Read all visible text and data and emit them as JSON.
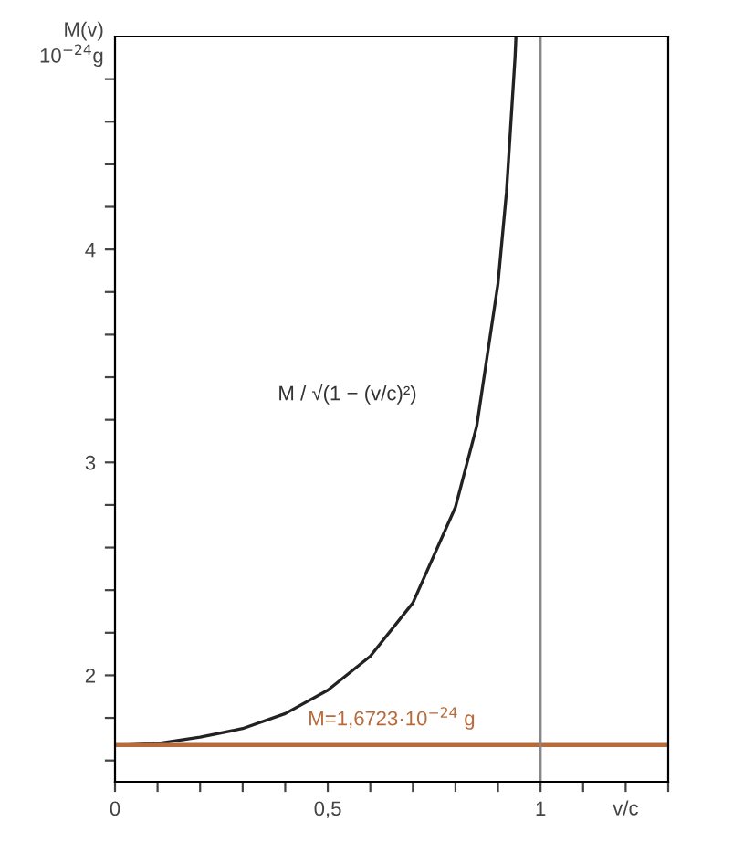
{
  "chart_data": {
    "type": "line",
    "xlabel": "v/c",
    "ylabel": "M(v)\n10$^{−24}$g",
    "x": [
      0,
      0.1,
      0.2,
      0.3,
      0.4,
      0.5,
      0.6,
      0.7,
      0.8,
      0.85,
      0.9,
      0.92,
      0.94,
      0.942
    ],
    "series": [
      {
        "color": "#222222",
        "values": [
          1.67,
          1.68,
          1.71,
          1.75,
          1.82,
          1.93,
          2.09,
          2.34,
          2.79,
          3.17,
          3.84,
          4.27,
          4.9,
          4.99
        ]
      }
    ],
    "xlim": [
      0,
      1.3
    ],
    "ylim": [
      1.5,
      5
    ],
    "xticks": [
      {
        "value": 0,
        "label": "0"
      },
      {
        "value": 0.1,
        "label": null
      },
      {
        "value": 0.2,
        "label": null
      },
      {
        "value": 0.3,
        "label": null
      },
      {
        "value": 0.4,
        "label": null
      },
      {
        "value": 0.5,
        "label": "0,5"
      },
      {
        "value": 0.6,
        "label": null
      },
      {
        "value": 0.7,
        "label": null
      },
      {
        "value": 0.8,
        "label": null
      },
      {
        "value": 0.9,
        "label": null
      },
      {
        "value": 1,
        "label": "1"
      },
      {
        "value": 1.1,
        "label": null
      },
      {
        "value": 1.2,
        "label": null
      },
      {
        "value": 1.3,
        "label": null
      }
    ],
    "yticks": [
      {
        "value": 1.6,
        "label": null
      },
      {
        "value": 1.8,
        "label": null
      },
      2,
      {
        "value": 2.2,
        "label": null
      },
      {
        "value": 2.4,
        "label": null
      },
      {
        "value": 2.6,
        "label": null
      },
      {
        "value": 2.8,
        "label": null
      },
      3,
      {
        "value": 3.2,
        "label": null
      },
      {
        "value": 3.4,
        "label": null
      },
      {
        "value": 3.6,
        "label": null
      },
      {
        "value": 3.8,
        "label": null
      },
      4,
      {
        "value": 4.2,
        "label": null
      },
      {
        "value": 4.4,
        "label": null
      },
      {
        "value": 4.6,
        "label": null
      },
      {
        "value": 4.8,
        "label": null
      }
    ],
    "ref_lines": [
      {
        "axis": "y",
        "value": 1.6723,
        "color": "#b86a3a"
      },
      {
        "axis": "x",
        "value": 1,
        "color": "#888888"
      }
    ],
    "annotations": [
      "M / √(1 − (v/c)²)",
      "M=1,6723·10$^{−24}$ g"
    ],
    "grid": false,
    "marker": "none",
    "line_style": "solid"
  }
}
